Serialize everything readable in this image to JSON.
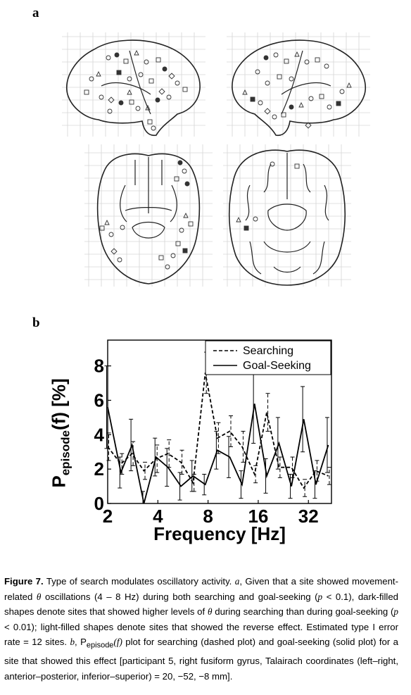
{
  "figure": {
    "panel_a_label": "a",
    "panel_b_label": "b"
  },
  "chart_data": {
    "type": "line",
    "xlabel": "Frequency [Hz]",
    "ylabel_main": "P",
    "ylabel_sub": "episode",
    "ylabel_tail": "(f) [%]",
    "x_scale": "log2",
    "xlim": [
      2,
      44
    ],
    "ylim": [
      0,
      9.5
    ],
    "x_ticks": [
      2,
      4,
      8,
      16,
      32
    ],
    "x_tick_labels": [
      "2",
      "4",
      "8",
      "16",
      "32"
    ],
    "y_ticks": [
      0,
      2,
      4,
      6,
      8
    ],
    "y_tick_labels": [
      "0",
      "2",
      "4",
      "6",
      "8"
    ],
    "grid": false,
    "legend_position": "top-right",
    "x": [
      2.0,
      2.4,
      2.8,
      3.3,
      3.9,
      4.6,
      5.5,
      6.5,
      7.7,
      9.1,
      10.8,
      12.8,
      15.2,
      18.0,
      21.3,
      25.3,
      30.0,
      35.5,
      42.1
    ],
    "series": [
      {
        "name": "Searching",
        "style": "dashed",
        "values": [
          3.3,
          2.3,
          2.9,
          1.9,
          2.6,
          2.9,
          2.4,
          1.2,
          7.6,
          3.8,
          4.2,
          3.3,
          1.7,
          5.3,
          2.1,
          2.1,
          0.9,
          1.9,
          1.6
        ],
        "errors": [
          0.8,
          0.6,
          0.7,
          0.5,
          0.8,
          0.8,
          0.7,
          0.5,
          1.2,
          0.9,
          0.9,
          0.9,
          0.5,
          1.1,
          0.6,
          0.6,
          0.5,
          0.6,
          0.5
        ]
      },
      {
        "name": "Goal-Seeking",
        "style": "solid",
        "values": [
          5.6,
          1.8,
          3.4,
          0.0,
          2.7,
          2.1,
          1.0,
          1.6,
          1.1,
          3.1,
          2.7,
          1.1,
          5.8,
          1.6,
          3.5,
          1.0,
          4.9,
          1.1,
          3.4
        ],
        "errors": [
          2.4,
          0.9,
          1.5,
          0.7,
          1.1,
          1.1,
          0.8,
          0.9,
          0.6,
          1.1,
          1.2,
          0.8,
          2.3,
          1.0,
          1.5,
          0.7,
          1.9,
          0.8,
          1.6
        ]
      }
    ]
  },
  "caption": {
    "label": "Figure 7.",
    "text_1": "Type of search modulates oscillatory activity.",
    "a_ref": "a",
    "text_2": ", Given that a site showed movement-related",
    "theta": "θ",
    "text_3": "oscillations (4 – 8 Hz) during both searching and goal-seeking (",
    "p_1": "p",
    "text_4": "< 0.1), dark-filled shapes denote sites that showed higher levels of",
    "theta_2": "θ",
    "text_5": "during searching than during goal-seeking (",
    "p_2": "p",
    "text_6": "< 0.01); light-filled shapes denote sites that showed the reverse effect. Estimated type I error rate = 12 sites.",
    "b_ref": "b",
    "text_7": ", P",
    "sub_episode": "episode",
    "f_paren": "(f)",
    "text_8": "plot for searching (dashed plot) and goal-seeking (solid plot) for a site that showed this effect [participant 5, right fusiform gyrus, Talairach coordinates (left–right, anterior–posterior, inferior–superior) = 20, −52, −8 mm]."
  }
}
